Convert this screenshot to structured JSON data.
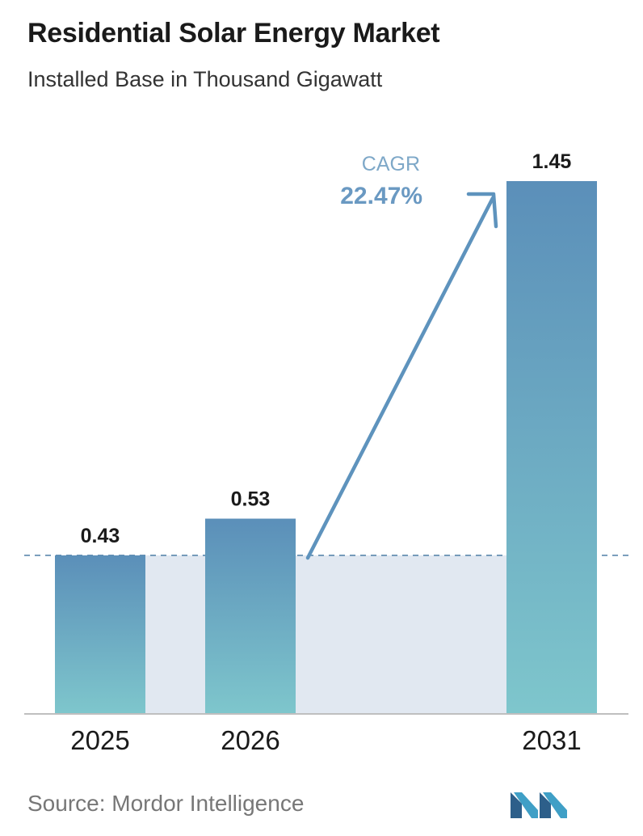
{
  "title": "Residential Solar Energy Market",
  "subtitle": "Installed Base in Thousand Gigawatt",
  "source": "Source:  Mordor Intelligence",
  "cagr": {
    "label": "CAGR",
    "value": "22.47%"
  },
  "colors": {
    "bar_top": "#5b8fb9",
    "bar_bottom": "#7ec6cc",
    "band": "#e1e8f1",
    "arrow": "#5e93bd",
    "cagr_label": "#7ea8c8",
    "cagr_value": "#6a99c2",
    "dashed": "#4f7fa6",
    "axis": "#bfbfbf"
  },
  "chart_data": {
    "type": "bar",
    "categories": [
      "2025",
      "2026",
      "2031"
    ],
    "values": [
      0.43,
      0.53,
      1.45
    ],
    "data_labels": [
      "0.43",
      "0.53",
      "1.45"
    ],
    "ylim": [
      0,
      1.45
    ],
    "grid": false,
    "reference_line": 0.43
  }
}
